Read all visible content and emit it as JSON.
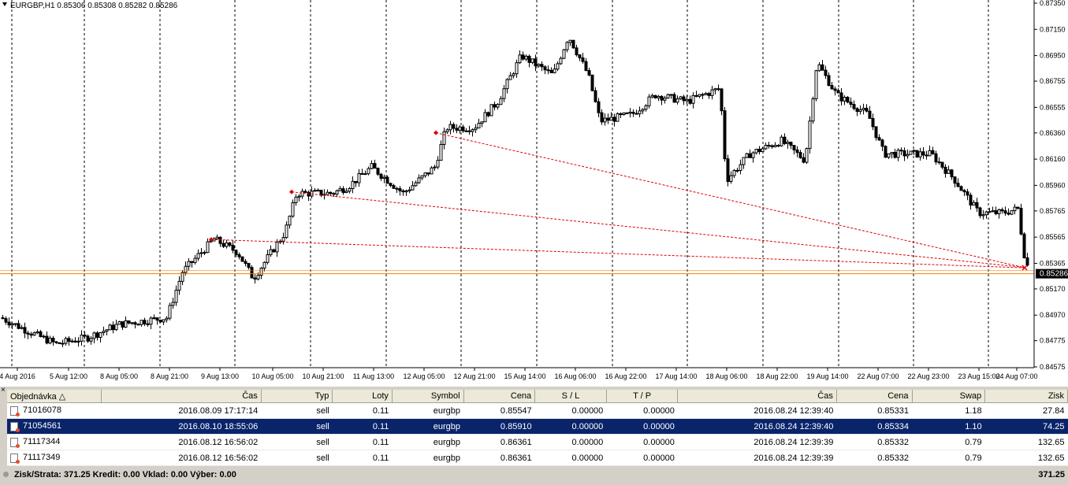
{
  "chart": {
    "title": "EURGBP,H1  0.85306 0.85308 0.85282 0.85286",
    "current_price": "0.85286",
    "price_axis": [
      "0.87350",
      "0.87150",
      "0.86950",
      "0.86755",
      "0.86555",
      "0.86360",
      "0.86160",
      "0.85960",
      "0.85765",
      "0.85565",
      "0.85365",
      "0.85170",
      "0.84970",
      "0.84775",
      "0.84575"
    ],
    "time_axis": [
      "4 Aug 2016",
      "5 Aug 12:00",
      "8 Aug 05:00",
      "8 Aug 21:00",
      "9 Aug 13:00",
      "10 Aug 05:00",
      "10 Aug 21:00",
      "11 Aug 13:00",
      "12 Aug 05:00",
      "12 Aug 21:00",
      "15 Aug 14:00",
      "16 Aug 06:00",
      "16 Aug 22:00",
      "17 Aug 14:00",
      "18 Aug 06:00",
      "18 Aug 22:00",
      "19 Aug 14:00",
      "22 Aug 07:00",
      "22 Aug 23:00",
      "23 Aug 15:00",
      "24 Aug 07:00"
    ],
    "colors": {
      "trade_line": "#e00000",
      "bid_line": "#f08000",
      "grid": "#000000",
      "price_tag_bg": "#000000",
      "price_tag_text": "#ffffff"
    }
  },
  "terminal": {
    "close_glyph": "×",
    "columns": [
      "Objednávka  △",
      "Čas",
      "Typ",
      "Loty",
      "Symbol",
      "Cena",
      "S / L",
      "T / P",
      "Čas",
      "Cena",
      "Swap",
      "Zisk"
    ],
    "rows": [
      {
        "order": "71016078",
        "open_time": "2016.08.09 17:17:14",
        "type": "sell",
        "lots": "0.11",
        "symbol": "eurgbp",
        "price": "0.85547",
        "sl": "0.00000",
        "tp": "0.00000",
        "close_time": "2016.08.24 12:39:40",
        "close_price": "0.85331",
        "swap": "1.18",
        "profit": "27.84",
        "selected": false
      },
      {
        "order": "71054561",
        "open_time": "2016.08.10 18:55:06",
        "type": "sell",
        "lots": "0.11",
        "symbol": "eurgbp",
        "price": "0.85910",
        "sl": "0.00000",
        "tp": "0.00000",
        "close_time": "2016.08.24 12:39:40",
        "close_price": "0.85334",
        "swap": "1.10",
        "profit": "74.25",
        "selected": true
      },
      {
        "order": "71117344",
        "open_time": "2016.08.12 16:56:02",
        "type": "sell",
        "lots": "0.11",
        "symbol": "eurgbp",
        "price": "0.86361",
        "sl": "0.00000",
        "tp": "0.00000",
        "close_time": "2016.08.24 12:39:39",
        "close_price": "0.85332",
        "swap": "0.79",
        "profit": "132.65",
        "selected": false
      },
      {
        "order": "71117349",
        "open_time": "2016.08.12 16:56:02",
        "type": "sell",
        "lots": "0.11",
        "symbol": "eurgbp",
        "price": "0.86361",
        "sl": "0.00000",
        "tp": "0.00000",
        "close_time": "2016.08.24 12:39:39",
        "close_price": "0.85332",
        "swap": "0.79",
        "profit": "132.65",
        "selected": false
      }
    ],
    "summary_text": "Zisk/Strata: 371.25  Kredit: 0.00  Vklad: 0.00  Výber: 0.00",
    "summary_total": "371.25"
  }
}
